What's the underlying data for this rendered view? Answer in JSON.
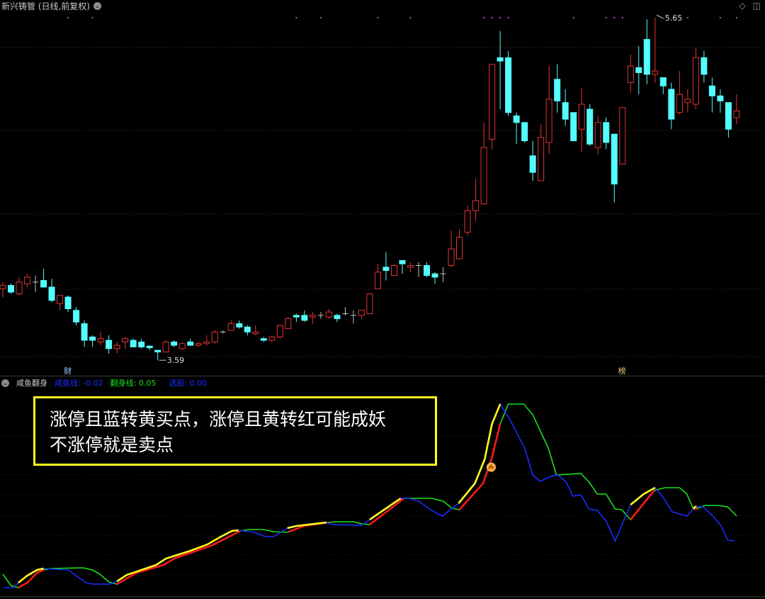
{
  "header": {
    "title": "新兴铸管 (日线,前复权)",
    "dropdown_icon": "chevron-down-icon",
    "right_icons": [
      "diamond-icon",
      "panel-toggle-icon"
    ]
  },
  "price_annotations": {
    "high_label": "5.65",
    "low_label": "3.59"
  },
  "event_markers": [
    {
      "day": 8,
      "label": "财",
      "color": "#9fd0ff"
    },
    {
      "day": 76,
      "label": "榜",
      "color": "#f0c080"
    }
  ],
  "top_signal_days": [
    8,
    11,
    36,
    39,
    46,
    50,
    59,
    60,
    61,
    62,
    70,
    74,
    75,
    76,
    84,
    88,
    90
  ],
  "indicator": {
    "name": "咸鱼翻身",
    "fields": [
      {
        "label": "咸鱼线",
        "value": "-0.02",
        "color": "#1a2cff"
      },
      {
        "label": "翻身线",
        "value": "0.05",
        "color": "#19e019"
      },
      {
        "label": "选股",
        "value": "0.00",
        "color": "#1a2cff"
      }
    ]
  },
  "note": {
    "line1": "涨停且蓝转黄买点，涨停且黄转红可能成妖",
    "line2": "不涨停就是卖点"
  },
  "colors": {
    "up": "#e03434",
    "down": "#54ffff",
    "doji": "#c0c0c0",
    "line_a": "#1a2cff",
    "line_a_hl": "#ffff1e",
    "line_b": "#19e019",
    "line_b_hl": "#ff1a1a",
    "signal": "#b040c0"
  },
  "chart_data": [
    {
      "type": "candlestick",
      "ylim": [
        3.497,
        5.757
      ],
      "grid": true,
      "ohlc": [
        [
          4.02,
          4.06,
          3.97,
          4.04
        ],
        [
          4.04,
          4.05,
          3.99,
          4.0
        ],
        [
          3.99,
          4.09,
          3.98,
          4.06
        ],
        [
          4.05,
          4.11,
          4.03,
          4.09
        ],
        [
          4.06,
          4.1,
          4.0,
          4.06
        ],
        [
          4.07,
          4.14,
          4.03,
          4.03
        ],
        [
          4.03,
          4.08,
          3.94,
          3.95
        ],
        [
          3.93,
          3.98,
          3.89,
          3.98
        ],
        [
          3.97,
          3.98,
          3.88,
          3.9
        ],
        [
          3.89,
          3.91,
          3.8,
          3.82
        ],
        [
          3.81,
          3.83,
          3.67,
          3.71
        ],
        [
          3.73,
          3.74,
          3.67,
          3.71
        ],
        [
          3.7,
          3.76,
          3.68,
          3.72
        ],
        [
          3.71,
          3.74,
          3.63,
          3.66
        ],
        [
          3.66,
          3.7,
          3.63,
          3.68
        ],
        [
          3.7,
          3.73,
          3.66,
          3.72
        ],
        [
          3.71,
          3.72,
          3.67,
          3.67
        ],
        [
          3.7,
          3.72,
          3.66,
          3.67
        ],
        [
          3.675,
          3.68,
          3.65,
          3.665
        ],
        [
          3.65,
          3.65,
          3.59,
          3.64
        ],
        [
          3.64,
          3.71,
          3.64,
          3.7
        ],
        [
          3.7,
          3.71,
          3.67,
          3.68
        ],
        [
          3.66,
          3.7,
          3.65,
          3.69
        ],
        [
          3.7,
          3.72,
          3.68,
          3.68
        ],
        [
          3.68,
          3.7,
          3.67,
          3.69
        ],
        [
          3.69,
          3.74,
          3.68,
          3.7
        ],
        [
          3.7,
          3.77,
          3.69,
          3.76
        ],
        [
          3.76,
          3.77,
          3.75,
          3.76
        ],
        [
          3.77,
          3.83,
          3.77,
          3.81
        ],
        [
          3.81,
          3.83,
          3.78,
          3.79
        ],
        [
          3.79,
          3.8,
          3.74,
          3.76
        ],
        [
          3.75,
          3.8,
          3.74,
          3.76
        ],
        [
          3.72,
          3.73,
          3.7,
          3.71
        ],
        [
          3.71,
          3.74,
          3.7,
          3.73
        ],
        [
          3.73,
          3.8,
          3.72,
          3.8
        ],
        [
          3.78,
          3.85,
          3.78,
          3.84
        ],
        [
          3.86,
          3.87,
          3.82,
          3.85
        ],
        [
          3.86,
          3.89,
          3.82,
          3.83
        ],
        [
          3.85,
          3.88,
          3.81,
          3.86
        ],
        [
          3.86,
          3.88,
          3.84,
          3.86
        ],
        [
          3.85,
          3.9,
          3.84,
          3.88
        ],
        [
          3.86,
          3.87,
          3.82,
          3.84
        ],
        [
          3.87,
          3.91,
          3.86,
          3.87
        ],
        [
          3.86,
          3.89,
          3.81,
          3.86
        ],
        [
          3.86,
          3.89,
          3.84,
          3.89
        ],
        [
          3.87,
          3.99,
          3.87,
          3.99
        ],
        [
          4.02,
          4.17,
          4.02,
          4.12
        ],
        [
          4.15,
          4.24,
          4.07,
          4.13
        ],
        [
          4.1,
          4.17,
          4.1,
          4.16
        ],
        [
          4.19,
          4.19,
          4.11,
          4.17
        ],
        [
          4.15,
          4.18,
          4.12,
          4.16
        ],
        [
          4.16,
          4.18,
          4.09,
          4.16
        ],
        [
          4.16,
          4.18,
          4.09,
          4.1
        ],
        [
          4.11,
          4.12,
          4.05,
          4.09
        ],
        [
          4.11,
          4.15,
          4.06,
          4.11
        ],
        [
          4.16,
          4.37,
          4.15,
          4.26
        ],
        [
          4.2,
          4.38,
          4.2,
          4.33
        ],
        [
          4.36,
          4.52,
          4.34,
          4.49
        ],
        [
          4.49,
          4.68,
          4.43,
          4.55
        ],
        [
          4.53,
          5.02,
          4.53,
          4.87
        ],
        [
          4.92,
          5.37,
          4.86,
          5.37
        ],
        [
          5.41,
          5.57,
          5.1,
          5.39
        ],
        [
          5.41,
          5.45,
          5.06,
          5.08
        ],
        [
          5.06,
          5.08,
          4.89,
          5.02
        ],
        [
          5.02,
          5.02,
          4.9,
          4.91
        ],
        [
          4.82,
          4.91,
          4.67,
          4.72
        ],
        [
          4.67,
          5.01,
          4.67,
          4.93
        ],
        [
          4.9,
          5.36,
          4.83,
          5.16
        ],
        [
          5.28,
          5.37,
          5.08,
          5.15
        ],
        [
          5.14,
          5.22,
          5.0,
          5.04
        ],
        [
          5.08,
          5.08,
          4.91,
          4.91
        ],
        [
          4.98,
          5.23,
          4.84,
          5.13
        ],
        [
          5.1,
          5.13,
          4.88,
          4.89
        ],
        [
          4.87,
          5.06,
          4.83,
          5.02
        ],
        [
          5.02,
          5.05,
          4.86,
          4.9
        ],
        [
          4.95,
          4.95,
          4.54,
          4.65
        ],
        [
          4.77,
          5.11,
          4.77,
          5.11
        ],
        [
          5.26,
          5.43,
          5.2,
          5.36
        ],
        [
          5.35,
          5.48,
          5.19,
          5.32
        ],
        [
          5.52,
          5.64,
          5.25,
          5.31
        ],
        [
          5.31,
          5.65,
          5.26,
          5.33
        ],
        [
          5.29,
          5.29,
          5.19,
          5.24
        ],
        [
          5.22,
          5.26,
          4.98,
          5.04
        ],
        [
          5.08,
          5.33,
          5.07,
          5.19
        ],
        [
          5.14,
          5.22,
          5.08,
          5.16
        ],
        [
          5.13,
          5.47,
          5.1,
          5.41
        ],
        [
          5.41,
          5.45,
          5.26,
          5.31
        ],
        [
          5.24,
          5.29,
          5.08,
          5.18
        ],
        [
          5.18,
          5.22,
          5.08,
          5.15
        ],
        [
          5.14,
          5.14,
          4.93,
          4.98
        ],
        [
          5.05,
          5.19,
          5.01,
          5.09
        ]
      ],
      "high": {
        "day": 80,
        "value": 5.65
      },
      "low": {
        "day": 19,
        "value": 3.59
      }
    },
    {
      "type": "line",
      "ylim": [
        -0.184,
        0.41
      ],
      "series": [
        {
          "name": "咸鱼线",
          "points": [
            [
              0.1,
              -0.152
            ],
            [
              1.3,
              -0.152
            ],
            [
              1.9,
              -0.138
            ],
            [
              3.0,
              -0.118
            ],
            [
              4.2,
              -0.102
            ],
            [
              5.0,
              -0.098
            ],
            [
              8.0,
              -0.102
            ],
            [
              10.2,
              -0.138
            ],
            [
              11.0,
              -0.142
            ],
            [
              13.1,
              -0.142
            ],
            [
              14.0,
              -0.134
            ],
            [
              15.2,
              -0.116
            ],
            [
              18.8,
              -0.088
            ],
            [
              20.0,
              -0.07
            ],
            [
              23.0,
              -0.048
            ],
            [
              25.1,
              -0.03
            ],
            [
              26.6,
              -0.01
            ],
            [
              28.1,
              0.008
            ],
            [
              28.9,
              0.01
            ],
            [
              29.5,
              0.008
            ],
            [
              30.8,
              0.004
            ],
            [
              32.2,
              -0.008
            ],
            [
              33.2,
              -0.008
            ],
            [
              34.9,
              0.016
            ],
            [
              36.0,
              0.022
            ],
            [
              39.7,
              0.032
            ],
            [
              40.3,
              0.026
            ],
            [
              44.0,
              0.024
            ],
            [
              45.0,
              0.04
            ],
            [
              48.8,
              0.1
            ],
            [
              49.8,
              0.1
            ],
            [
              51.0,
              0.092
            ],
            [
              52.6,
              0.066
            ],
            [
              53.9,
              0.05
            ],
            [
              55.9,
              0.086
            ],
            [
              57.9,
              0.142
            ],
            [
              59.1,
              0.21
            ],
            [
              60.0,
              0.31
            ],
            [
              61.0,
              0.366
            ],
            [
              62.2,
              0.322
            ],
            [
              64.0,
              0.242
            ],
            [
              65.0,
              0.166
            ],
            [
              65.9,
              0.148
            ],
            [
              67.2,
              0.162
            ],
            [
              68.1,
              0.166
            ],
            [
              69.1,
              0.146
            ],
            [
              69.9,
              0.106
            ],
            [
              70.9,
              0.11
            ],
            [
              71.9,
              0.07
            ],
            [
              72.9,
              0.066
            ],
            [
              74.0,
              0.036
            ],
            [
              75.1,
              -0.02
            ],
            [
              76.2,
              0.04
            ],
            [
              77.0,
              0.082
            ],
            [
              78.6,
              0.112
            ],
            [
              80.0,
              0.13
            ],
            [
              81.0,
              0.102
            ],
            [
              82.1,
              0.062
            ],
            [
              83.9,
              0.05
            ],
            [
              84.9,
              0.076
            ],
            [
              85.9,
              0.076
            ],
            [
              87.1,
              0.05
            ],
            [
              88.1,
              0.022
            ],
            [
              88.9,
              -0.018
            ],
            [
              89.8,
              -0.02
            ]
          ],
          "highlight_ranges": [
            [
              1.9,
              5.0
            ],
            [
              14.0,
              28.9
            ],
            [
              34.9,
              39.7
            ],
            [
              45.0,
              48.8
            ],
            [
              55.9,
              61.0
            ],
            [
              77.0,
              80.0
            ],
            [
              84.7,
              85.1
            ]
          ]
        },
        {
          "name": "翻身线",
          "points": [
            [
              0,
              -0.114
            ],
            [
              1.0,
              -0.146
            ],
            [
              1.9,
              -0.152
            ],
            [
              3.0,
              -0.138
            ],
            [
              4.2,
              -0.11
            ],
            [
              5.0,
              -0.102
            ],
            [
              5.9,
              -0.098
            ],
            [
              9.8,
              -0.096
            ],
            [
              11.0,
              -0.102
            ],
            [
              11.9,
              -0.114
            ],
            [
              13.0,
              -0.136
            ],
            [
              14.0,
              -0.142
            ],
            [
              16.4,
              -0.11
            ],
            [
              19.7,
              -0.088
            ],
            [
              21.2,
              -0.068
            ],
            [
              23.5,
              -0.05
            ],
            [
              25.7,
              -0.032
            ],
            [
              28.1,
              -0.004
            ],
            [
              29.1,
              0.008
            ],
            [
              30.2,
              0.012
            ],
            [
              32.0,
              0.012
            ],
            [
              33.2,
              0.006
            ],
            [
              34.9,
              0.004
            ],
            [
              36.9,
              0.022
            ],
            [
              39.9,
              0.032
            ],
            [
              40.9,
              0.034
            ],
            [
              43.0,
              0.034
            ],
            [
              44.0,
              0.028
            ],
            [
              45.0,
              0.026
            ],
            [
              49.2,
              0.1
            ],
            [
              52.6,
              0.1
            ],
            [
              54.0,
              0.092
            ],
            [
              55.1,
              0.072
            ],
            [
              56.0,
              0.068
            ],
            [
              58.9,
              0.142
            ],
            [
              60.0,
              0.216
            ],
            [
              61.0,
              0.31
            ],
            [
              62.0,
              0.366
            ],
            [
              63.9,
              0.366
            ],
            [
              65.0,
              0.336
            ],
            [
              66.9,
              0.242
            ],
            [
              67.9,
              0.166
            ],
            [
              70.9,
              0.17
            ],
            [
              71.9,
              0.146
            ],
            [
              72.9,
              0.112
            ],
            [
              74.0,
              0.112
            ],
            [
              75.1,
              0.07
            ],
            [
              75.9,
              0.068
            ],
            [
              77.0,
              0.04
            ],
            [
              79.9,
              0.122
            ],
            [
              81.2,
              0.13
            ],
            [
              83.0,
              0.13
            ],
            [
              83.9,
              0.112
            ],
            [
              84.7,
              0.07
            ],
            [
              85.1,
              0.07
            ],
            [
              86.1,
              0.08
            ],
            [
              87.7,
              0.08
            ],
            [
              88.9,
              0.076
            ],
            [
              90.0,
              0.05
            ]
          ],
          "highlight_ranges": [
            [
              1.9,
              5.0
            ],
            [
              14.0,
              29.1
            ],
            [
              35.1,
              39.9
            ],
            [
              45.0,
              49.2
            ],
            [
              56.0,
              61.0
            ],
            [
              77.0,
              79.9
            ],
            [
              84.7,
              85.1
            ]
          ]
        }
      ],
      "signal_marker": {
        "day": 59.9,
        "value": 0.188,
        "icon": "up-arrow-circle-icon"
      }
    }
  ]
}
